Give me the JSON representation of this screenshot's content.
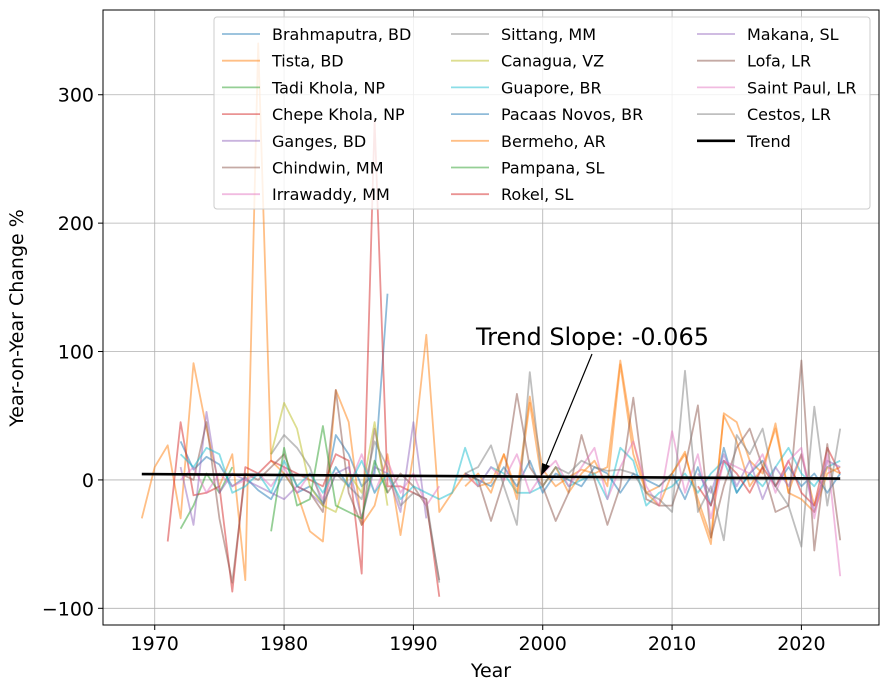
{
  "chart_data": {
    "type": "line",
    "xlabel": "Year",
    "ylabel": "Year-on-Year Change %",
    "xlim": [
      1966,
      2026
    ],
    "ylim": [
      -113,
      366
    ],
    "xticks": [
      1970,
      1980,
      1990,
      2000,
      2010,
      2020
    ],
    "yticks": [
      -100,
      0,
      100,
      200,
      300
    ],
    "ytick_labels": [
      "−100",
      "0",
      "100",
      "200",
      "300"
    ],
    "grid": true,
    "legend_position": "top-right",
    "series": [
      {
        "name": "Brahmaputra, BD",
        "color": "#1f77b4",
        "x": [
          1972,
          1973,
          1974,
          1975,
          1976,
          1977,
          1978,
          1979,
          1980,
          1981,
          1982,
          1983,
          1984,
          1985,
          1986,
          1987,
          1988
        ],
        "y": [
          30,
          8,
          18,
          12,
          -5,
          2,
          -8,
          -15,
          5,
          -10,
          -5,
          -18,
          35,
          20,
          -5,
          5,
          145
        ]
      },
      {
        "name": "Tista, BD",
        "color": "#ff7f0e",
        "x": [
          1969,
          1970,
          1971,
          1972,
          1973,
          1974,
          1975,
          1976,
          1977,
          1978,
          1979,
          1980,
          1981,
          1982,
          1983,
          1984,
          1985,
          1986,
          1987,
          1988,
          1989,
          1990,
          1991,
          1992,
          1993,
          1994,
          1995,
          1996,
          1997,
          1998,
          1999,
          2000,
          2001,
          2002,
          2003,
          2004,
          2005,
          2006,
          2007,
          2008,
          2009,
          2010,
          2011,
          2012,
          2013,
          2014,
          2015,
          2016,
          2017,
          2018,
          2019,
          2020,
          2021,
          2022,
          2023
        ],
        "y": [
          -30,
          10,
          27,
          -30,
          91,
          40,
          -5,
          20,
          -78,
          340,
          15,
          5,
          -10,
          -40,
          -48,
          70,
          45,
          -35,
          -20,
          20,
          -43,
          20,
          113,
          -25,
          -10,
          5,
          -5,
          -2,
          20,
          -10,
          65,
          8,
          -5,
          2,
          8,
          5,
          10,
          93,
          30,
          -10,
          -5,
          5,
          22,
          -20,
          -50,
          52,
          45,
          15,
          5,
          44,
          -10,
          -15,
          -25,
          5,
          10
        ]
      },
      {
        "name": "Tadi Khola, NP",
        "color": "#2ca02c",
        "x": [
          1972,
          1973,
          1974,
          1975,
          1976
        ],
        "y": [
          -38,
          -20,
          5,
          -10,
          10
        ]
      },
      {
        "name": "Chepe Khola, NP",
        "color": "#d62728",
        "x": [
          1971,
          1972,
          1973,
          1974,
          1975,
          1976,
          1977,
          1978,
          1979,
          1980,
          1981,
          1982,
          1983,
          1984,
          1985,
          1986,
          1987,
          1988,
          1989,
          1990,
          1991,
          1992
        ],
        "y": [
          -48,
          45,
          -12,
          -10,
          -5,
          -87,
          10,
          5,
          15,
          10,
          5,
          0,
          -5,
          20,
          15,
          -73,
          280,
          -5,
          -5,
          -10,
          -15,
          -91
        ]
      },
      {
        "name": "Ganges, BD",
        "color": "#9467bd",
        "x": [
          1972,
          1973,
          1974,
          1975,
          1976,
          1977,
          1978,
          1979,
          1980,
          1981,
          1982,
          1983,
          1984,
          1985,
          1986,
          1987,
          1988,
          1989,
          1990,
          1991
        ],
        "y": [
          10,
          -35,
          53,
          -10,
          5,
          0,
          -5,
          -10,
          -15,
          -5,
          -10,
          -20,
          5,
          10,
          -30,
          10,
          5,
          -25,
          45,
          -30
        ]
      },
      {
        "name": "Chindwin, MM",
        "color": "#8c564b",
        "x": [
          1972,
          1973,
          1974,
          1975,
          1976,
          1977,
          1978,
          1979,
          1980,
          1981,
          1982,
          1983,
          1984,
          1985,
          1986,
          1987,
          1988,
          1989,
          1990,
          1991,
          1992
        ],
        "y": [
          5,
          0,
          45,
          -30,
          -80,
          5,
          0,
          10,
          20,
          -5,
          -10,
          -25,
          70,
          -10,
          -35,
          40,
          -10,
          5,
          -5,
          -20,
          -78
        ]
      },
      {
        "name": "Irrawaddy, MM",
        "color": "#e377c2",
        "x": [
          1972,
          1973,
          1974,
          1975,
          1976,
          1977,
          1978,
          1979,
          1980,
          1981,
          1982,
          1983,
          1984,
          1985,
          1986,
          1987,
          1988,
          1989,
          1990,
          1991,
          1992
        ],
        "y": [
          0,
          10,
          -10,
          5,
          -5,
          0,
          5,
          -5,
          10,
          -10,
          5,
          -15,
          10,
          -5,
          20,
          -10,
          15,
          -10,
          5,
          -20,
          -5
        ]
      },
      {
        "name": "Sittang, MM",
        "color": "#7f7f7f",
        "x": [
          1979,
          1980,
          1981,
          1982,
          1983,
          1984,
          1985,
          1986,
          1987,
          1988,
          1989,
          1990,
          1991,
          1992
        ],
        "y": [
          20,
          35,
          25,
          10,
          -20,
          5,
          -5,
          -15,
          30,
          10,
          -20,
          -10,
          -15,
          -80
        ]
      },
      {
        "name": "Canagua, VZ",
        "color": "#bcbd22",
        "x": [
          1979,
          1980,
          1981,
          1982,
          1983,
          1984,
          1985,
          1986,
          1987,
          1988
        ],
        "y": [
          20,
          60,
          40,
          -5,
          -20,
          -25,
          5,
          -10,
          45,
          -20
        ]
      },
      {
        "name": "Guapore, BR",
        "color": "#17becf",
        "x": [
          1972,
          1973,
          1974,
          1975,
          1976,
          1977,
          1978,
          1979,
          1980,
          1981,
          1982,
          1983,
          1984,
          1985,
          1986,
          1987,
          1988,
          1989,
          1990,
          1991,
          1992,
          1993,
          1994,
          1995,
          1996,
          1997,
          1998,
          1999,
          2000,
          2001,
          2002,
          2003,
          2004,
          2005,
          2006,
          2007,
          2008,
          2009,
          2010,
          2011,
          2012,
          2013,
          2014,
          2015,
          2016,
          2017,
          2018,
          2019,
          2020,
          2021,
          2022,
          2023
        ],
        "y": [
          20,
          10,
          25,
          20,
          -10,
          -5,
          5,
          -10,
          15,
          -5,
          5,
          -10,
          10,
          -5,
          15,
          -10,
          5,
          -15,
          -5,
          -10,
          -15,
          -10,
          25,
          -5,
          10,
          5,
          -10,
          -10,
          -5,
          10,
          -5,
          0,
          5,
          -15,
          25,
          15,
          -20,
          -10,
          -5,
          5,
          -10,
          5,
          15,
          -10,
          5,
          -5,
          10,
          25,
          5,
          -5,
          10,
          15
        ]
      },
      {
        "name": "Pacaas Novos, BR",
        "color": "#1f77b4",
        "x": [
          1994,
          1995,
          1996,
          1997,
          1998,
          1999,
          2000,
          2001,
          2002,
          2003,
          2004,
          2005,
          2006,
          2007,
          2008,
          2009,
          2010,
          2011,
          2012,
          2013,
          2014,
          2015,
          2016,
          2017,
          2018,
          2019,
          2020,
          2021,
          2022,
          2023
        ],
        "y": [
          5,
          0,
          -5,
          10,
          -5,
          15,
          -10,
          5,
          0,
          -5,
          10,
          5,
          -10,
          5,
          0,
          -5,
          5,
          -15,
          10,
          -20,
          25,
          -10,
          5,
          15,
          -5,
          10,
          -5,
          5,
          -10,
          5
        ]
      },
      {
        "name": "Bermeho, AR",
        "color": "#ff7f0e",
        "x": [
          1994,
          1995,
          1996,
          1997,
          1998,
          1999,
          2000,
          2001,
          2002,
          2003,
          2004,
          2005,
          2006,
          2007,
          2008,
          2009,
          2010,
          2011,
          2012,
          2013,
          2014,
          2015,
          2016,
          2017,
          2018,
          2019,
          2020,
          2021,
          2022,
          2023
        ],
        "y": [
          -5,
          5,
          -10,
          20,
          -15,
          60,
          -5,
          10,
          -10,
          5,
          15,
          -5,
          90,
          20,
          -10,
          -20,
          5,
          20,
          -15,
          -45,
          50,
          30,
          -5,
          10,
          40,
          -10,
          20,
          -20,
          10,
          5
        ]
      },
      {
        "name": "Pampana, SL",
        "color": "#2ca02c",
        "x": [
          1979,
          1980,
          1981,
          1982,
          1983,
          1984,
          1985,
          1986,
          1987,
          1988
        ],
        "y": [
          -40,
          25,
          -20,
          -15,
          42,
          -20,
          -25,
          -30,
          15,
          -10
        ]
      },
      {
        "name": "Rokel, SL",
        "color": "#d62728",
        "x": [
          2012,
          2013,
          2014,
          2015,
          2016,
          2017,
          2018,
          2019,
          2020,
          2021,
          2022,
          2023
        ],
        "y": [
          -5,
          -20,
          15,
          5,
          -10,
          10,
          -5,
          15,
          -10,
          -20,
          25,
          5
        ]
      },
      {
        "name": "Makana, SL",
        "color": "#9467bd",
        "x": [
          2012,
          2013,
          2014,
          2015,
          2016,
          2017,
          2018,
          2019,
          2020,
          2021,
          2022,
          2023
        ],
        "y": [
          5,
          -10,
          20,
          -5,
          15,
          -15,
          10,
          -5,
          20,
          -25,
          15,
          10
        ]
      },
      {
        "name": "Lofa, LR",
        "color": "#8c564b",
        "x": [
          1994,
          1995,
          1996,
          1997,
          1998,
          1999,
          2000,
          2001,
          2002,
          2003,
          2004,
          2005,
          2006,
          2007,
          2008,
          2009,
          2010,
          2011,
          2012,
          2013,
          2014,
          2015,
          2016,
          2017,
          2018,
          2019,
          2020,
          2021,
          2022,
          2023
        ],
        "y": [
          5,
          0,
          -32,
          0,
          67,
          10,
          -5,
          -32,
          -10,
          35,
          0,
          -35,
          -5,
          64,
          -15,
          -20,
          -20,
          10,
          58,
          -45,
          -5,
          25,
          40,
          10,
          -25,
          -20,
          93,
          -55,
          28,
          -47
        ]
      },
      {
        "name": "Saint Paul, LR",
        "color": "#e377c2",
        "x": [
          1994,
          1995,
          1996,
          1997,
          1998,
          1999,
          2000,
          2001,
          2002,
          2003,
          2004,
          2005,
          2006,
          2007,
          2008,
          2009,
          2010,
          2011,
          2012,
          2013,
          2014,
          2015,
          2016,
          2017,
          2018,
          2019,
          2020,
          2021,
          2022,
          2023
        ],
        "y": [
          5,
          -5,
          10,
          0,
          20,
          -10,
          5,
          15,
          -5,
          10,
          25,
          -15,
          10,
          30,
          -5,
          -20,
          38,
          -10,
          20,
          -30,
          15,
          10,
          5,
          20,
          -10,
          15,
          25,
          -30,
          20,
          -75
        ]
      },
      {
        "name": "Cestos, LR",
        "color": "#7f7f7f",
        "x": [
          1994,
          1995,
          1996,
          1997,
          1998,
          1999,
          2000,
          2001,
          2002,
          2003,
          2004,
          2005,
          2006,
          2007,
          2008,
          2009,
          2010,
          2011,
          2012,
          2013,
          2014,
          2015,
          2016,
          2017,
          2018,
          2019,
          2020,
          2021,
          2022,
          2023
        ],
        "y": [
          5,
          10,
          27,
          -5,
          -35,
          84,
          -5,
          10,
          5,
          15,
          10,
          7,
          8,
          5,
          -10,
          -15,
          -25,
          85,
          -25,
          -5,
          -47,
          35,
          20,
          40,
          -5,
          -20,
          -52,
          57,
          -20,
          40
        ]
      },
      {
        "name": "Trend",
        "color": "#000000",
        "x": [
          1969,
          2023
        ],
        "y": [
          4.5,
          1.0
        ]
      }
    ],
    "annotation": {
      "text": "Trend Slope: -0.065",
      "x": 2000,
      "y": 4.5
    }
  }
}
